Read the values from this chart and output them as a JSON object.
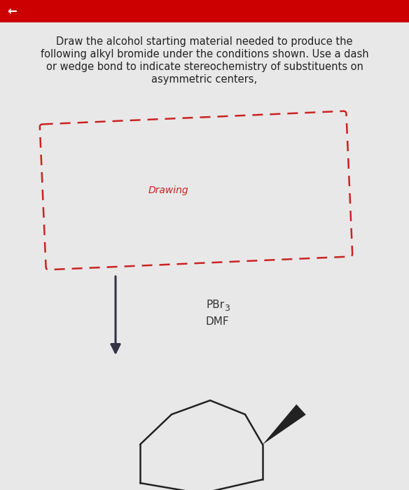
{
  "background_color": "#e8e8e8",
  "title_lines": [
    "Draw the alcohol starting material needed to produce the",
    "following alkyl bromide under the conditions shown. Use a dash",
    "or wedge bond to indicate stereochemistry of substituents on",
    "asymmetric centers,"
  ],
  "title_fontsize": 10.5,
  "title_color": "#222222",
  "header_bar_color": "#cc0000",
  "header_bar_height": 0.045,
  "drawing_box_color": "#cc2222",
  "drawing_text": "Drawing",
  "drawing_text_color": "#cc2222",
  "drawing_text_fontsize": 10,
  "reagents": [
    "PBr3",
    "DMF"
  ],
  "reagent_fontsize": 11,
  "reagent_color": "#333333",
  "arrow_color": "#333344",
  "molecule_color": "#222222"
}
